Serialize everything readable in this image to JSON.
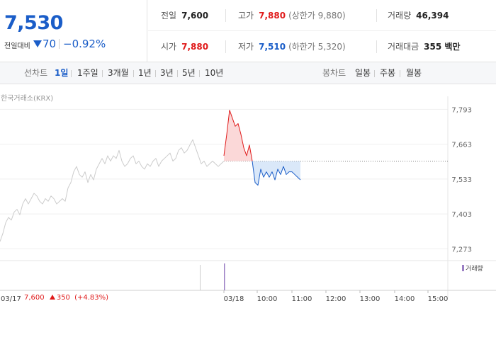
{
  "quote": {
    "price": "7,530",
    "change_label": "전일대비",
    "change_value": "70",
    "change_pct": "−0.92%",
    "prev_close_label": "전일",
    "prev_close": "7,600",
    "high_label": "고가",
    "high": "7,880",
    "upper_limit": "(상한가 9,880)",
    "volume_label": "거래량",
    "volume": "46,394",
    "open_label": "시가",
    "open": "7,880",
    "low_label": "저가",
    "low": "7,510",
    "lower_limit": "(하한가 5,320)",
    "amount_label": "거래대금",
    "amount": "355 백만",
    "color_up": "#e01b1b",
    "color_down": "#1a5dc8"
  },
  "tabs": {
    "line_label": "선차트",
    "line_items": [
      "1일",
      "1주일",
      "3개월",
      "1년",
      "3년",
      "5년",
      "10년"
    ],
    "active_line": "1일",
    "candle_label": "봉차트",
    "candle_items": [
      "일봉",
      "주봉",
      "월봉"
    ]
  },
  "chart": {
    "exchange": "한국거래소(KRX)",
    "volume_legend": "거래량",
    "prev_date": "03/17",
    "prev_close": "7,600",
    "prev_change": "350",
    "prev_change_pct": "(+4.83%)"
  },
  "chart_data": {
    "type": "line",
    "y_ticks": [
      "7,793",
      "7,663",
      "7,533",
      "7,403",
      "7,273"
    ],
    "ylim": [
      7250,
      7810
    ],
    "reference_price": 7600,
    "x_ticks": [
      "03/17",
      "03/18",
      "10:00",
      "11:00",
      "12:00",
      "13:00",
      "14:00",
      "15:00"
    ],
    "series": [
      {
        "x": [
          0,
          4,
          8,
          12,
          16,
          20,
          24,
          28,
          32,
          36,
          40,
          44,
          48,
          52,
          56,
          60,
          64,
          68,
          72,
          76,
          80,
          84,
          88,
          92,
          96,
          100,
          104,
          108,
          112,
          116,
          120,
          124,
          128,
          132,
          136,
          140,
          144,
          148,
          152,
          156,
          160,
          164,
          168,
          172,
          176,
          180,
          184,
          188,
          192,
          196,
          200,
          204,
          208,
          212,
          216,
          220,
          224,
          228,
          232,
          236,
          240,
          244,
          248,
          252,
          256,
          260,
          264,
          268,
          272,
          276,
          280,
          284,
          288,
          292,
          296,
          300,
          304,
          308,
          312,
          316
        ],
        "values": [
          7300,
          7330,
          7370,
          7390,
          7380,
          7410,
          7420,
          7400,
          7440,
          7460,
          7440,
          7460,
          7480,
          7470,
          7450,
          7440,
          7460,
          7450,
          7470,
          7460,
          7440,
          7450,
          7460,
          7450,
          7500,
          7520,
          7560,
          7580,
          7550,
          7540,
          7560,
          7520,
          7550,
          7530,
          7570,
          7590,
          7610,
          7590,
          7620,
          7600,
          7620,
          7610,
          7640,
          7600,
          7580,
          7590,
          7610,
          7620,
          7590,
          7600,
          7580,
          7570,
          7590,
          7580,
          7600,
          7610,
          7580,
          7600,
          7610,
          7620,
          7630,
          7600,
          7610,
          7640,
          7650,
          7630,
          7640,
          7660,
          7680,
          7650,
          7620,
          7590,
          7600,
          7580,
          7590,
          7600,
          7590,
          7580,
          7590,
          7600
        ],
        "color": "#cccccc"
      },
      {
        "x": [
          316,
          320,
          324,
          328,
          332,
          336,
          340,
          344,
          348,
          352,
          356
        ],
        "values": [
          7620,
          7700,
          7790,
          7760,
          7730,
          7740,
          7700,
          7650,
          7620,
          7660,
          7600
        ],
        "color": "#e01b1b"
      },
      {
        "x": [
          356,
          360,
          364,
          368,
          372,
          376,
          380,
          384,
          388,
          392,
          396,
          400,
          404,
          408,
          412,
          416,
          420,
          424
        ],
        "values": [
          7600,
          7520,
          7510,
          7570,
          7540,
          7560,
          7540,
          7560,
          7530,
          7570,
          7550,
          7580,
          7550,
          7560,
          7560,
          7550,
          7540,
          7530
        ],
        "color": "#1a5dc8"
      }
    ]
  }
}
